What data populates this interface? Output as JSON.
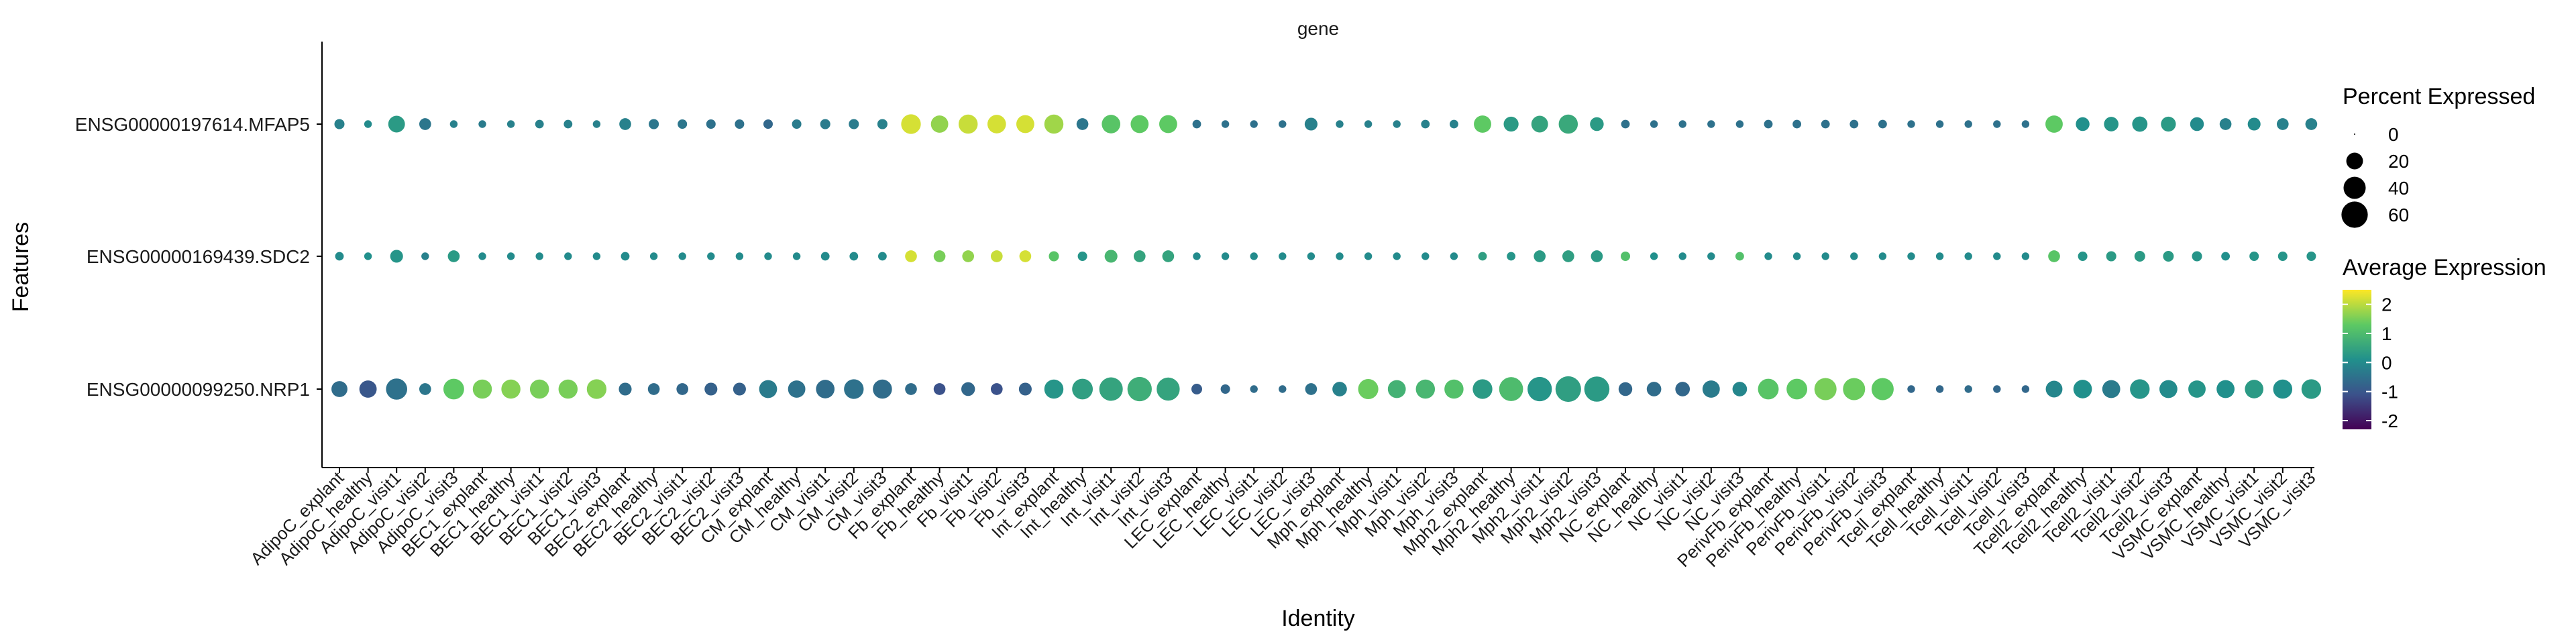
{
  "chart_data": {
    "type": "dot",
    "title": "gene",
    "xlabel": "Identity",
    "ylabel": "Features",
    "categories": [
      "AdipoC_explant",
      "AdipoC_healthy",
      "AdipoC_visit1",
      "AdipoC_visit2",
      "AdipoC_visit3",
      "BEC1_explant",
      "BEC1_healthy",
      "BEC1_visit1",
      "BEC1_visit2",
      "BEC1_visit3",
      "BEC2_explant",
      "BEC2_healthy",
      "BEC2_visit1",
      "BEC2_visit2",
      "BEC2_visit3",
      "CM_explant",
      "CM_healthy",
      "CM_visit1",
      "CM_visit2",
      "CM_visit3",
      "Fb_explant",
      "Fb_healthy",
      "Fb_visit1",
      "Fb_visit2",
      "Fb_visit3",
      "Int_explant",
      "Int_healthy",
      "Int_visit1",
      "Int_visit2",
      "Int_visit3",
      "LEC_explant",
      "LEC_healthy",
      "LEC_visit1",
      "LEC_visit2",
      "LEC_visit3",
      "Mph_explant",
      "Mph_healthy",
      "Mph_visit1",
      "Mph_visit2",
      "Mph_visit3",
      "Mph2_explant",
      "Mph2_healthy",
      "Mph2_visit1",
      "Mph2_visit2",
      "Mph2_visit3",
      "NC_explant",
      "NC_healthy",
      "NC_visit1",
      "NC_visit2",
      "NC_visit3",
      "PerivFb_explant",
      "PerivFb_healthy",
      "PerivFb_visit1",
      "PerivFb_visit2",
      "PerivFb_visit3",
      "Tcell_explant",
      "Tcell_healthy",
      "Tcell_visit1",
      "Tcell_visit2",
      "Tcell_visit3",
      "Tcell2_explant",
      "Tcell2_healthy",
      "Tcell2_visit1",
      "Tcell2_visit2",
      "Tcell2_visit3",
      "VSMC_explant",
      "VSMC_healthy",
      "VSMC_visit1",
      "VSMC_visit2",
      "VSMC_visit3"
    ],
    "features": [
      "ENSG00000197614.MFAP5",
      "ENSG00000169439.SDC2",
      "ENSG00000099250.NRP1"
    ],
    "series": [
      {
        "feature": "ENSG00000197614.MFAP5",
        "pct": [
          5,
          2,
          20,
          8,
          2,
          2,
          2,
          3,
          3,
          2,
          8,
          5,
          4,
          4,
          4,
          4,
          4,
          5,
          5,
          5,
          30,
          22,
          28,
          26,
          24,
          28,
          8,
          26,
          24,
          24,
          3,
          2,
          2,
          2,
          10,
          2,
          2,
          2,
          3,
          3,
          22,
          15,
          20,
          28,
          12,
          3,
          2,
          2,
          2,
          2,
          3,
          3,
          3,
          3,
          3,
          2,
          2,
          2,
          2,
          2,
          22,
          12,
          14,
          16,
          15,
          12,
          8,
          10,
          8,
          8
        ],
        "avg": [
          -0.2,
          0,
          0.3,
          -0.4,
          -0.2,
          -0.3,
          -0.2,
          -0.2,
          -0.2,
          -0.2,
          -0.2,
          -0.4,
          -0.4,
          -0.5,
          -0.5,
          -0.7,
          -0.3,
          -0.3,
          -0.3,
          -0.2,
          2.2,
          1.7,
          2.1,
          2.2,
          2.2,
          1.8,
          -0.4,
          1.2,
          1.3,
          1.3,
          -0.5,
          -0.5,
          -0.5,
          -0.5,
          -0.2,
          -0.2,
          -0.2,
          -0.2,
          -0.2,
          -0.2,
          1.3,
          0.3,
          0.5,
          0.6,
          0.3,
          -0.5,
          -0.5,
          -0.5,
          -0.5,
          -0.5,
          -0.5,
          -0.5,
          -0.5,
          -0.5,
          -0.5,
          -0.5,
          -0.5,
          -0.5,
          -0.5,
          -0.5,
          1.3,
          0.1,
          0.2,
          0.2,
          0.3,
          0,
          -0.2,
          0,
          -0.2,
          -0.2
        ]
      },
      {
        "feature": "ENSG00000169439.SDC2",
        "pct": [
          3,
          2,
          10,
          2,
          8,
          2,
          2,
          2,
          2,
          2,
          3,
          2,
          2,
          2,
          2,
          2,
          2,
          3,
          3,
          3,
          8,
          8,
          8,
          8,
          8,
          5,
          4,
          10,
          8,
          8,
          2,
          2,
          2,
          2,
          2,
          2,
          2,
          2,
          2,
          2,
          3,
          3,
          8,
          8,
          8,
          4,
          2,
          2,
          2,
          3,
          2,
          2,
          2,
          2,
          2,
          2,
          2,
          2,
          2,
          2,
          8,
          4,
          5,
          6,
          6,
          5,
          3,
          4,
          4,
          4
        ],
        "avg": [
          0,
          0.1,
          0.2,
          -0.2,
          0.3,
          0,
          0,
          0,
          0,
          0,
          0,
          0,
          0,
          0,
          0,
          0,
          0,
          0,
          0,
          0,
          2.2,
          1.5,
          1.7,
          2.1,
          2.2,
          1.2,
          0.2,
          0.9,
          0.5,
          0.5,
          0,
          0,
          0,
          0,
          0,
          0,
          0,
          0,
          0,
          0,
          0.4,
          0.2,
          0.3,
          0.4,
          0.3,
          1.1,
          0.1,
          0,
          0,
          1.1,
          0,
          0,
          0,
          0,
          0,
          0,
          0,
          0,
          0,
          0,
          1.2,
          0.2,
          0.3,
          0.3,
          0.3,
          0.2,
          0.1,
          0.2,
          0.2,
          0.2
        ]
      },
      {
        "feature": "ENSG00000099250.NRP1",
        "pct": [
          18,
          22,
          36,
          8,
          34,
          28,
          28,
          28,
          28,
          30,
          10,
          8,
          8,
          10,
          10,
          24,
          22,
          26,
          30,
          28,
          8,
          8,
          12,
          8,
          10,
          28,
          34,
          46,
          50,
          44,
          6,
          4,
          2,
          2,
          8,
          14,
          32,
          24,
          28,
          28,
          30,
          48,
          50,
          56,
          54,
          12,
          14,
          14,
          22,
          14,
          34,
          34,
          40,
          40,
          40,
          2,
          2,
          2,
          2,
          2,
          20,
          26,
          24,
          30,
          24,
          22,
          24,
          26,
          28,
          30
        ],
        "avg": [
          -0.6,
          -1.0,
          -0.5,
          -0.4,
          1.3,
          1.5,
          1.6,
          1.5,
          1.5,
          1.6,
          -0.6,
          -0.6,
          -0.7,
          -0.8,
          -0.8,
          -0.3,
          -0.5,
          -0.6,
          -0.5,
          -0.6,
          -0.6,
          -1.1,
          -0.7,
          -1.1,
          -0.8,
          0.2,
          0.4,
          0.5,
          0.7,
          0.5,
          -0.9,
          -0.7,
          -0.6,
          -0.6,
          -0.5,
          -0.2,
          1.4,
          0.8,
          0.9,
          1.1,
          0.3,
          1.0,
          0.2,
          0.4,
          0.3,
          -0.7,
          -0.6,
          -0.7,
          -0.3,
          -0.1,
          1.2,
          1.3,
          1.5,
          1.4,
          1.3,
          -0.7,
          -0.7,
          -0.6,
          -0.7,
          -0.7,
          -0.1,
          0.1,
          -0.3,
          0.2,
          0,
          0.2,
          0.1,
          0.3,
          0.1,
          0.3
        ]
      }
    ],
    "size_legend": {
      "title": "Percent Expressed",
      "breaks": [
        0,
        20,
        40,
        60
      ],
      "labels": [
        "0",
        "20",
        "40",
        "60"
      ]
    },
    "color_legend": {
      "title": "Average Expression",
      "breaks": [
        2,
        1,
        0,
        -1,
        -2
      ],
      "labels": [
        "2",
        "1",
        "0",
        "-1",
        "-2"
      ],
      "limits": [
        -2.3,
        2.5
      ],
      "palette": "viridis"
    },
    "colors": {
      "viridis": [
        "#440154",
        "#3b528b",
        "#21908c",
        "#5dc963",
        "#fde725"
      ],
      "axis": "#000000"
    }
  }
}
